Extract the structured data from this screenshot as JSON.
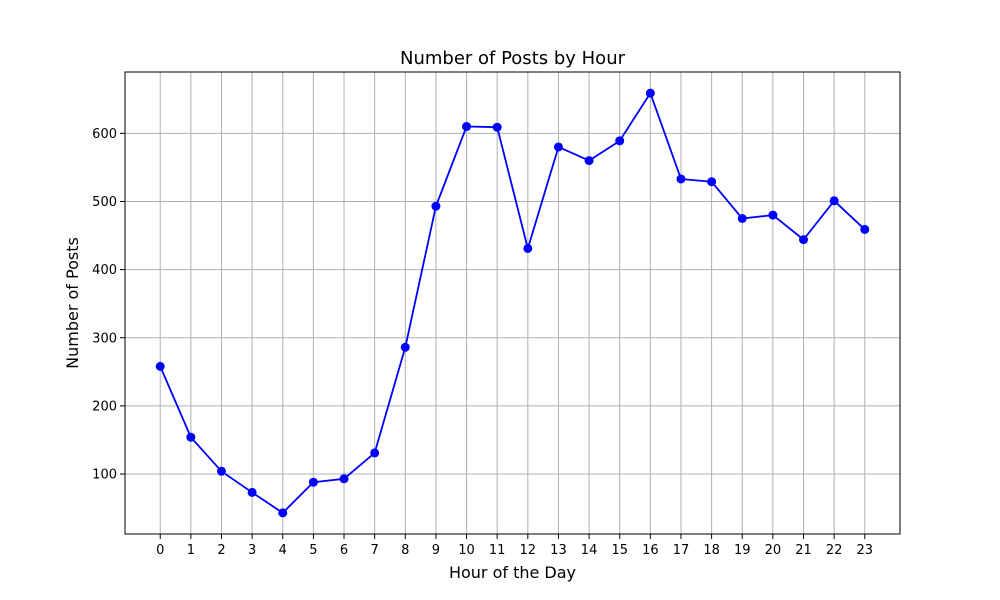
{
  "chart_data": {
    "type": "line",
    "title": "Number of Posts by Hour",
    "xlabel": "Hour of the Day",
    "ylabel": "Number of Posts",
    "x": [
      0,
      1,
      2,
      3,
      4,
      5,
      6,
      7,
      8,
      9,
      10,
      11,
      12,
      13,
      14,
      15,
      16,
      17,
      18,
      19,
      20,
      21,
      22,
      23
    ],
    "x_ticks": [
      "0",
      "1",
      "2",
      "3",
      "4",
      "5",
      "6",
      "7",
      "8",
      "9",
      "10",
      "11",
      "12",
      "13",
      "14",
      "15",
      "16",
      "17",
      "18",
      "19",
      "20",
      "21",
      "22",
      "23"
    ],
    "series": [
      {
        "values": [
          258,
          154,
          104,
          73,
          43,
          88,
          93,
          131,
          286,
          493,
          610,
          609,
          431,
          580,
          560,
          589,
          659,
          533,
          529,
          475,
          480,
          444,
          501,
          459
        ],
        "color": "#0000ff",
        "marker": "circle"
      }
    ],
    "y_ticks": [
      100,
      200,
      300,
      400,
      500,
      600
    ],
    "xlim": [
      -1.15,
      24.15
    ],
    "ylim": [
      12,
      690
    ],
    "grid": true
  }
}
